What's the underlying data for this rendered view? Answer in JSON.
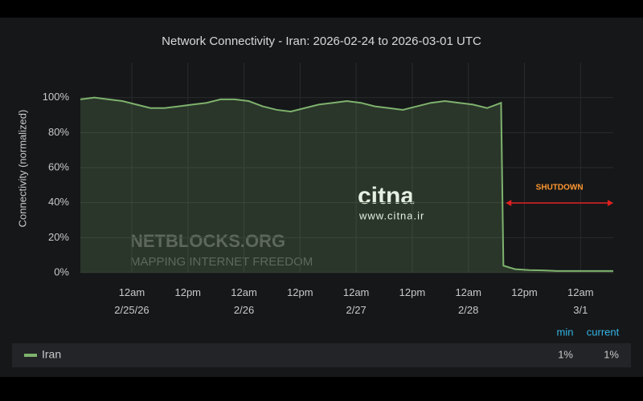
{
  "chart_data": {
    "type": "line",
    "title": "Network Connectivity - Iran: 2026-02-24 to 2026-03-01 UTC",
    "y_label": "Connectivity (normalized)",
    "x": [
      "2026-02-24T13:00",
      "2026-02-24T16:00",
      "2026-02-24T19:00",
      "2026-02-24T22:00",
      "2026-02-25T01:00",
      "2026-02-25T04:00",
      "2026-02-25T07:00",
      "2026-02-25T10:00",
      "2026-02-25T13:00",
      "2026-02-25T16:00",
      "2026-02-25T19:00",
      "2026-02-25T22:00",
      "2026-02-26T01:00",
      "2026-02-26T04:00",
      "2026-02-26T07:00",
      "2026-02-26T10:00",
      "2026-02-26T13:00",
      "2026-02-26T16:00",
      "2026-02-26T19:00",
      "2026-02-26T22:00",
      "2026-02-27T01:00",
      "2026-02-27T04:00",
      "2026-02-27T07:00",
      "2026-02-27T10:00",
      "2026-02-27T13:00",
      "2026-02-27T16:00",
      "2026-02-27T19:00",
      "2026-02-27T22:00",
      "2026-02-28T01:00",
      "2026-02-28T04:00",
      "2026-02-28T06:00",
      "2026-02-28T07:00",
      "2026-02-28T07:30",
      "2026-02-28T10:00",
      "2026-02-28T13:00",
      "2026-02-28T16:00",
      "2026-02-28T19:00",
      "2026-02-28T22:00",
      "2026-03-01T01:00",
      "2026-03-01T04:00",
      "2026-03-01T07:00"
    ],
    "series": [
      {
        "name": "Iran",
        "color": "#7eb26d",
        "values": [
          99,
          100,
          99,
          98,
          96,
          94,
          94,
          95,
          96,
          97,
          99,
          99,
          98,
          95,
          93,
          92,
          94,
          96,
          97,
          98,
          97,
          95,
          94,
          93,
          95,
          97,
          98,
          97,
          96,
          94,
          96,
          97,
          4,
          2,
          1.5,
          1.3,
          1,
          1,
          1,
          1,
          1
        ]
      }
    ],
    "xlim": [
      "2026-02-24T13:00",
      "2026-03-01T07:00"
    ],
    "xticks": [
      {
        "value": "2026-02-25T00:00",
        "label": "12am\n2/25/26"
      },
      {
        "value": "2026-02-25T12:00",
        "label": "12pm"
      },
      {
        "value": "2026-02-26T00:00",
        "label": "12am\n2/26"
      },
      {
        "value": "2026-02-26T12:00",
        "label": "12pm"
      },
      {
        "value": "2026-02-27T00:00",
        "label": "12am\n2/27"
      },
      {
        "value": "2026-02-27T12:00",
        "label": "12pm"
      },
      {
        "value": "2026-02-28T00:00",
        "label": "12am\n2/28"
      },
      {
        "value": "2026-02-28T12:00",
        "label": "12pm"
      },
      {
        "value": "2026-03-01T00:00",
        "label": "12am\n3/1"
      }
    ],
    "ylim": [
      0,
      120
    ],
    "yticks": [
      {
        "value": 0,
        "label": "0%"
      },
      {
        "value": 20,
        "label": "20%"
      },
      {
        "value": 40,
        "label": "40%"
      },
      {
        "value": 60,
        "label": "60%"
      },
      {
        "value": 80,
        "label": "80%"
      },
      {
        "value": 100,
        "label": "100%"
      }
    ],
    "grid": true,
    "annotation": {
      "text": "SHUTDOWN",
      "color": "#e02020",
      "text_color": "#ff9830",
      "from": "2026-02-28T08:00",
      "to": "2026-03-01T07:00",
      "y": 65
    },
    "watermarks": [
      "NETBLOCKS.ORG",
      "MAPPING INTERNET FREEDOM",
      "citna",
      "www.citna.ir"
    ],
    "legend_table": {
      "headers": [
        "min",
        "current"
      ],
      "rows": [
        [
          "1%",
          "1%"
        ]
      ]
    }
  }
}
